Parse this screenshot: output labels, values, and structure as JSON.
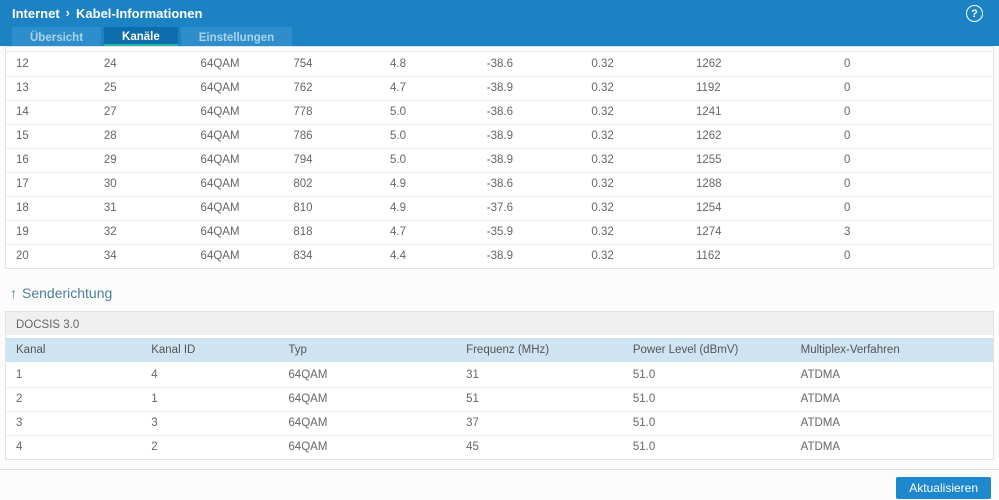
{
  "header": {
    "breadcrumb_root": "Internet",
    "breadcrumb_separator": "›",
    "breadcrumb_current": "Kabel-Informationen",
    "help_glyph": "?"
  },
  "tabs": [
    {
      "label": "Übersicht",
      "active": false
    },
    {
      "label": "Kanäle",
      "active": true
    },
    {
      "label": "Einstellungen",
      "active": false
    }
  ],
  "downstream_table": {
    "rows": [
      [
        "12",
        "24",
        "64QAM",
        "754",
        "4.8",
        "-38.6",
        "0.32",
        "1262",
        "0"
      ],
      [
        "13",
        "25",
        "64QAM",
        "762",
        "4.7",
        "-38.9",
        "0.32",
        "1192",
        "0"
      ],
      [
        "14",
        "27",
        "64QAM",
        "778",
        "5.0",
        "-38.6",
        "0.32",
        "1241",
        "0"
      ],
      [
        "15",
        "28",
        "64QAM",
        "786",
        "5.0",
        "-38.9",
        "0.32",
        "1262",
        "0"
      ],
      [
        "16",
        "29",
        "64QAM",
        "794",
        "5.0",
        "-38.9",
        "0.32",
        "1255",
        "0"
      ],
      [
        "17",
        "30",
        "64QAM",
        "802",
        "4.9",
        "-38.6",
        "0.32",
        "1288",
        "0"
      ],
      [
        "18",
        "31",
        "64QAM",
        "810",
        "4.9",
        "-37.6",
        "0.32",
        "1254",
        "0"
      ],
      [
        "19",
        "32",
        "64QAM",
        "818",
        "4.7",
        "-35.9",
        "0.32",
        "1274",
        "3"
      ],
      [
        "20",
        "34",
        "64QAM",
        "834",
        "4.4",
        "-38.9",
        "0.32",
        "1162",
        "0"
      ]
    ]
  },
  "upstream": {
    "arrow": "↑",
    "section_title": "Senderichtung",
    "docsis_label": "DOCSIS 3.0",
    "columns": [
      "Kanal",
      "Kanal ID",
      "Typ",
      "Frequenz (MHz)",
      "Power Level (dBmV)",
      "Multiplex-Verfahren"
    ],
    "rows": [
      [
        "1",
        "4",
        "64QAM",
        "31",
        "51.0",
        "ATDMA"
      ],
      [
        "2",
        "1",
        "64QAM",
        "51",
        "51.0",
        "ATDMA"
      ],
      [
        "3",
        "3",
        "64QAM",
        "37",
        "51.0",
        "ATDMA"
      ],
      [
        "4",
        "2",
        "64QAM",
        "45",
        "51.0",
        "ATDMA"
      ]
    ]
  },
  "footer": {
    "refresh_label": "Aktualisieren"
  },
  "colors": {
    "accent": "#1b82c4",
    "tab-active-bg": "#0d6dad",
    "tab-underline": "#2cb3a9",
    "upstream-header-bg": "#cfe4f2",
    "section-title": "#4b7e9b",
    "button-bg": "#1e88cf"
  }
}
